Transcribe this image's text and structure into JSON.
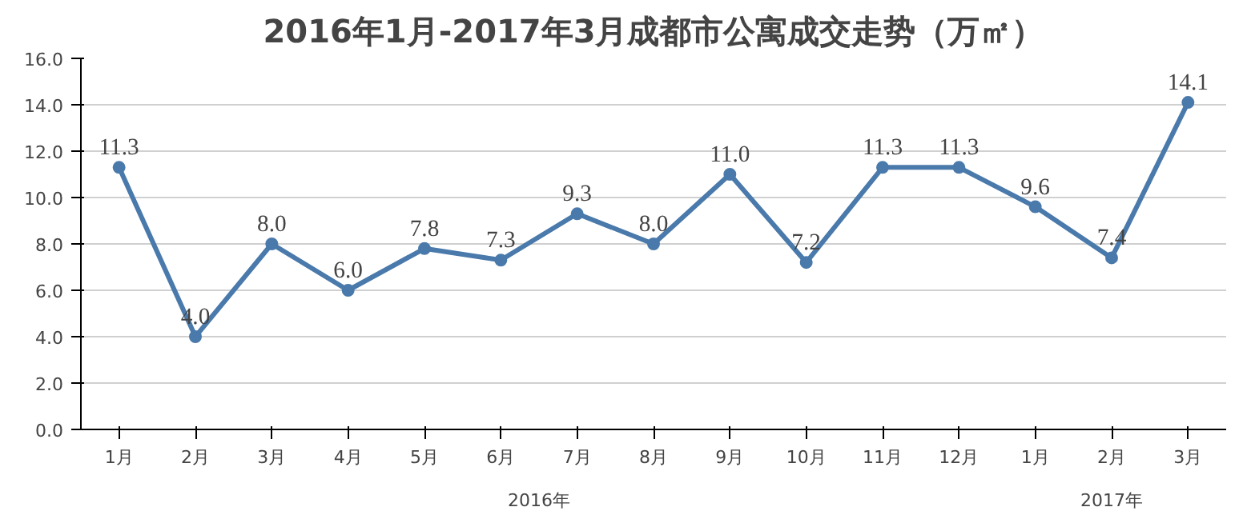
{
  "chart_data": {
    "type": "line",
    "title": "2016年1月-2017年3月成都市公寓成交走势（万㎡）",
    "categories": [
      "1月",
      "2月",
      "3月",
      "4月",
      "5月",
      "6月",
      "7月",
      "8月",
      "9月",
      "10月",
      "11月",
      "12月",
      "1月",
      "2月",
      "3月"
    ],
    "series": [
      {
        "color": "#4a7aab",
        "values": [
          11.3,
          4.0,
          8.0,
          6.0,
          7.8,
          7.3,
          9.3,
          8.0,
          11.0,
          7.2,
          11.3,
          11.3,
          9.6,
          7.4,
          14.1
        ]
      }
    ],
    "ylim": [
      0,
      16
    ],
    "yticks": [
      {
        "value": 0,
        "label": "0.0"
      },
      {
        "value": 2,
        "label": "2.0"
      },
      {
        "value": 4,
        "label": "4.0"
      },
      {
        "value": 6,
        "label": "6.0"
      },
      {
        "value": 8,
        "label": "8.0"
      },
      {
        "value": 10,
        "label": "10.0"
      },
      {
        "value": 12,
        "label": "12.0"
      },
      {
        "value": 14,
        "label": "14.0"
      },
      {
        "value": 16,
        "label": "16.0"
      }
    ],
    "annotations": [
      "2016年",
      "2017年"
    ],
    "value_labels": [
      "11.3",
      "4.0",
      "8.0",
      "6.0",
      "7.8",
      "7.3",
      "9.3",
      "8.0",
      "11.0",
      "7.2",
      "11.3",
      "11.3",
      "9.6",
      "7.4",
      "14.1"
    ],
    "grid": "y",
    "marker": "circle",
    "line_style": "solid"
  }
}
